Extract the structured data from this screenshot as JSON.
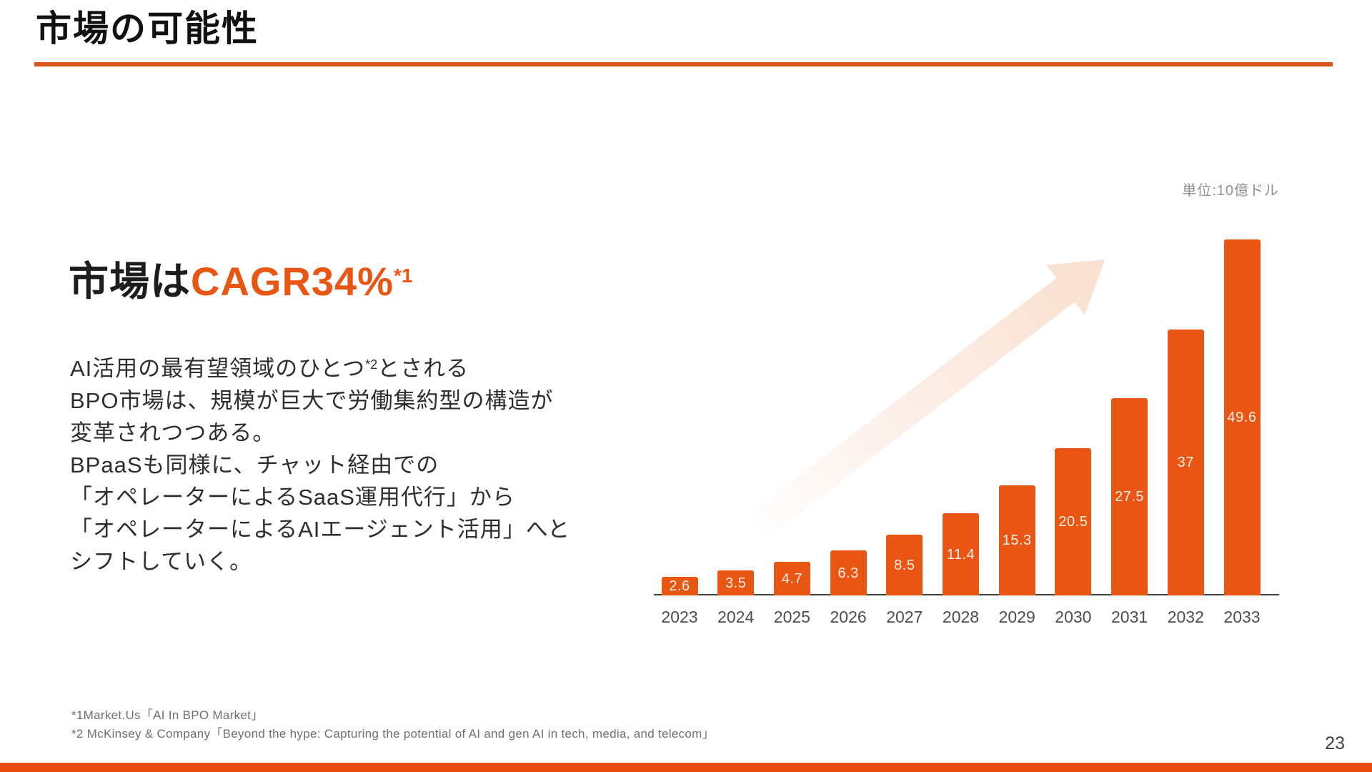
{
  "page": {
    "title": "市場の可能性",
    "page_number": "23",
    "accent_color": "#E95513",
    "underline_color": "#D8551C",
    "footer_bar_color": "#E64B0C"
  },
  "lead": {
    "heading_prefix": "市場は",
    "heading_highlight": "CAGR34%",
    "heading_footnote_ref": "*1",
    "body_line1": {
      "pre": "AI活用の最有望領域のひとつ",
      "sup": "*2",
      "post": "とされる"
    },
    "body_lines": [
      "BPO市場は、規模が巨大で労働集約型の構造が",
      "変革されつつある。",
      "BPaaSも同様に、チャット経由での",
      "「オペレーターによるSaaS運用代行」から",
      "「オペレーターによるAIエージェント活用」へと",
      "シフトしていく。"
    ]
  },
  "chart_data": {
    "type": "bar",
    "title": "",
    "xlabel": "",
    "ylabel": "",
    "unit_label": "単位:10億ドル",
    "categories": [
      "2023",
      "2024",
      "2025",
      "2026",
      "2027",
      "2028",
      "2029",
      "2030",
      "2031",
      "2032",
      "2033"
    ],
    "values": [
      2.6,
      3.5,
      4.7,
      6.3,
      8.5,
      11.4,
      15.3,
      20.5,
      27.5,
      37,
      49.6
    ],
    "value_labels": [
      "2.6",
      "3.5",
      "4.7",
      "6.3",
      "8.5",
      "11.4",
      "15.3",
      "20.5",
      "27.5",
      "37",
      "49.6"
    ],
    "ylim": [
      0,
      52
    ],
    "gridlines": false,
    "legend_position": "none",
    "bar_color": "#E95513",
    "value_label_color": "#FCEFE7",
    "axis_color": "#3F3F3F",
    "annotations": [
      "growth-arrow-up-right"
    ]
  },
  "footnotes": {
    "line1": "*1Market.Us「AI In BPO Market」",
    "line2": "*2 McKinsey & Company「Beyond the hype: Capturing the potential of AI and gen AI in tech, media, and telecom」"
  }
}
